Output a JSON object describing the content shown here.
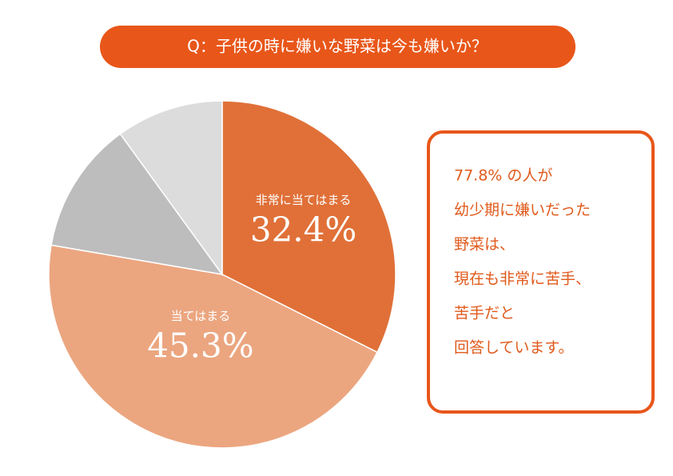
{
  "chart_data": {
    "type": "pie",
    "title": "Q：子供の時に嫌いな野菜は今も嫌いか？",
    "categories": [
      "非常に当てはまる",
      "当てはまる",
      null,
      null
    ],
    "values": [
      32.4,
      45.3,
      12.3,
      10.0
    ],
    "value_labels": [
      "32.4%",
      "45.3%",
      null,
      null
    ],
    "colors": [
      "#e07038",
      "#eba680",
      "#bdbdbd",
      "#dcdcdc"
    ],
    "title_color": "#e8561a",
    "annotation": [
      "77.8% の人が",
      "幼少期に嫌いだった",
      "野菜は、",
      "現在も非常に苦手、",
      "苦手だと",
      "回答しています。"
    ]
  }
}
